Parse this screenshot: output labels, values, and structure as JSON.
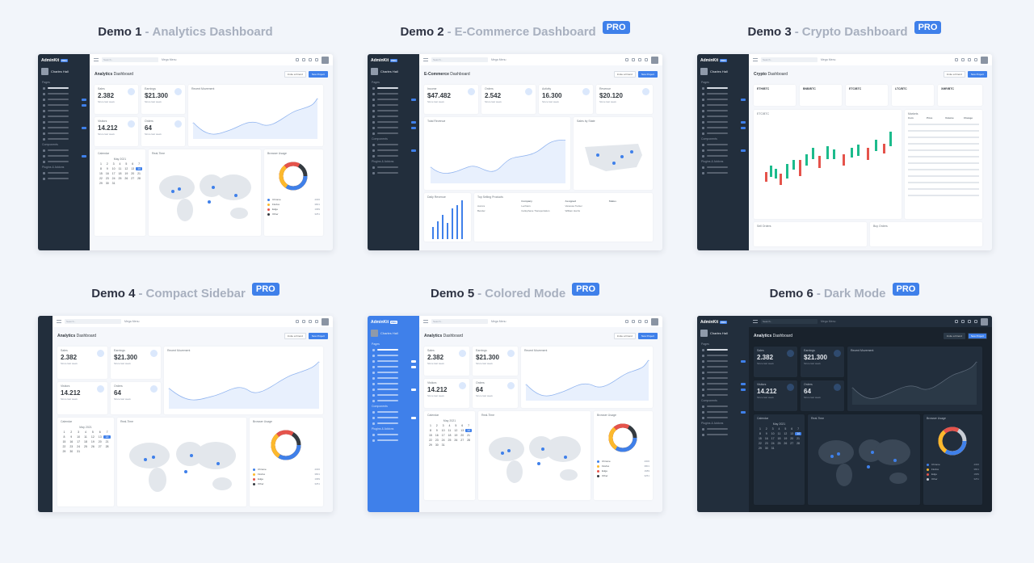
{
  "demos": [
    {
      "title": "Demo 1",
      "subtitle": "Analytics Dashboard",
      "pro": ""
    },
    {
      "title": "Demo 2",
      "subtitle": "E-Commerce Dashboard",
      "pro": "PRO"
    },
    {
      "title": "Demo 3",
      "subtitle": "Crypto Dashboard",
      "pro": "PRO"
    },
    {
      "title": "Demo 4",
      "subtitle": "Compact Sidebar",
      "pro": "PRO"
    },
    {
      "title": "Demo 5",
      "subtitle": "Colored Mode",
      "pro": "PRO"
    },
    {
      "title": "Demo 6",
      "subtitle": "Dark Mode",
      "pro": "PRO"
    }
  ],
  "separator": "-",
  "common": {
    "brand": "AdminKit",
    "brand_tag": "PRO",
    "user_name": "Charles Hall",
    "user_role": "Designer",
    "search": "Search...",
    "mega_menu": "Mega Menu",
    "btn_invite": "Invite a Friend",
    "btn_project": "New Project",
    "sec_pages": "Pages",
    "sec_components": "Components",
    "sec_plugins": "Plugins & Addons"
  },
  "analytics": {
    "title_bold": "Analytics",
    "title_rest": "Dashboard",
    "sales_label": "Sales",
    "sales_value": "2.382",
    "earnings_label": "Earnings",
    "earnings_value": "$21.300",
    "visitors_label": "Visitors",
    "visitors_value": "14.212",
    "orders_label": "Orders",
    "orders_value": "64",
    "since": "Since last week",
    "recent_movement": "Recent Movement",
    "calendar": "Calendar",
    "month": "May",
    "year": "2021",
    "weekdays": [
      "Su",
      "Mo",
      "Tu",
      "We",
      "Th",
      "Fr",
      "Sa"
    ],
    "real_time": "Real-Time",
    "browser_usage": "Browser Usage",
    "browsers": [
      {
        "name": "Chrome",
        "value": "4306",
        "color": "#3f80ea"
      },
      {
        "name": "Firefox",
        "value": "3801",
        "color": "#fcb92c"
      },
      {
        "name": "Edge",
        "value": "1689",
        "color": "#e5534b"
      },
      {
        "name": "Other",
        "value": "3251",
        "color": "#343a40"
      }
    ]
  },
  "ecommerce": {
    "title_bold": "E-Commerce",
    "title_rest": "Dashboard",
    "income_label": "Income",
    "income_value": "$47.482",
    "orders_label": "Orders",
    "orders_value": "2.542",
    "activity_label": "Activity",
    "activity_value": "16.300",
    "revenue_label": "Revenue",
    "revenue_value": "$20.120",
    "total_revenue": "Total Revenue",
    "sales_by_state": "Sales by State",
    "daily_revenue": "Daily Revenue",
    "top_selling": "Top Selling Products",
    "table_headers": [
      "Company",
      "Assigned",
      "Status"
    ],
    "table_rows": [
      {
        "name": "Aurora",
        "company": "Lechters",
        "assigned": "Vanessa Tucker"
      },
      {
        "name": "Bender",
        "company": "Cellophane Transportation",
        "assigned": "William Harris"
      }
    ]
  },
  "crypto": {
    "title_bold": "Crypto",
    "title_rest": "Dashboard",
    "tickers": [
      "ETH/BTC",
      "BNB/BTC",
      "ETC/BTC",
      "LTC/BTC",
      "XMR/BTC"
    ],
    "chart_title": "ETC/BTC",
    "markets": "Markets",
    "market_headers": [
      "Coin",
      "Price",
      "Volume",
      "Change"
    ],
    "sell_orders": "Sell Orders",
    "buy_orders": "Buy Orders"
  }
}
